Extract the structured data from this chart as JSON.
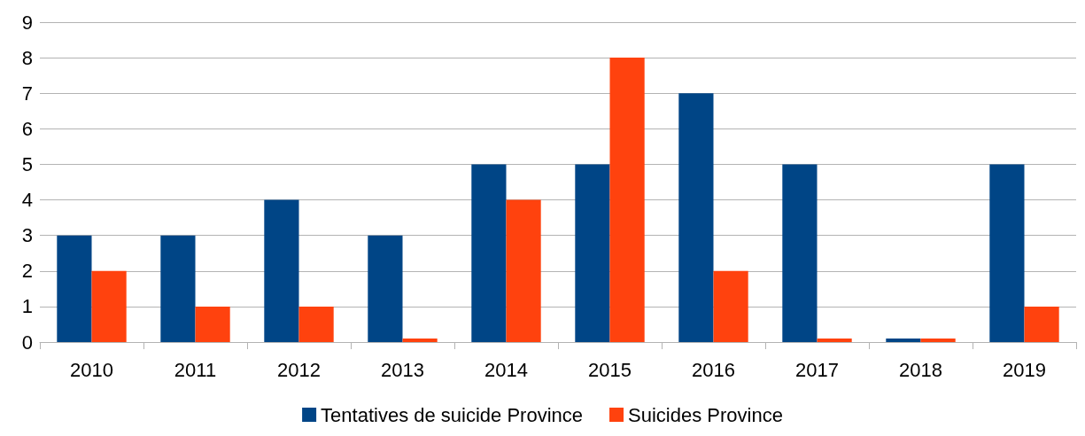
{
  "chart_data": {
    "type": "bar",
    "categories": [
      "2010",
      "2011",
      "2012",
      "2013",
      "2014",
      "2015",
      "2016",
      "2017",
      "2018",
      "2019"
    ],
    "series": [
      {
        "name": "Tentatives de suicide Province",
        "color": "#004586",
        "values": [
          3,
          3,
          4,
          3,
          5,
          5,
          7,
          5,
          0.1,
          5
        ]
      },
      {
        "name": "Suicides Province",
        "color": "#ff420e",
        "values": [
          2,
          1,
          1,
          0.1,
          4,
          8,
          2,
          0.1,
          0.1,
          1
        ]
      }
    ],
    "ylim": [
      0,
      9
    ],
    "yticks": [
      0,
      1,
      2,
      3,
      4,
      5,
      6,
      7,
      8,
      9
    ],
    "grid": "y",
    "legend": "bottom"
  }
}
